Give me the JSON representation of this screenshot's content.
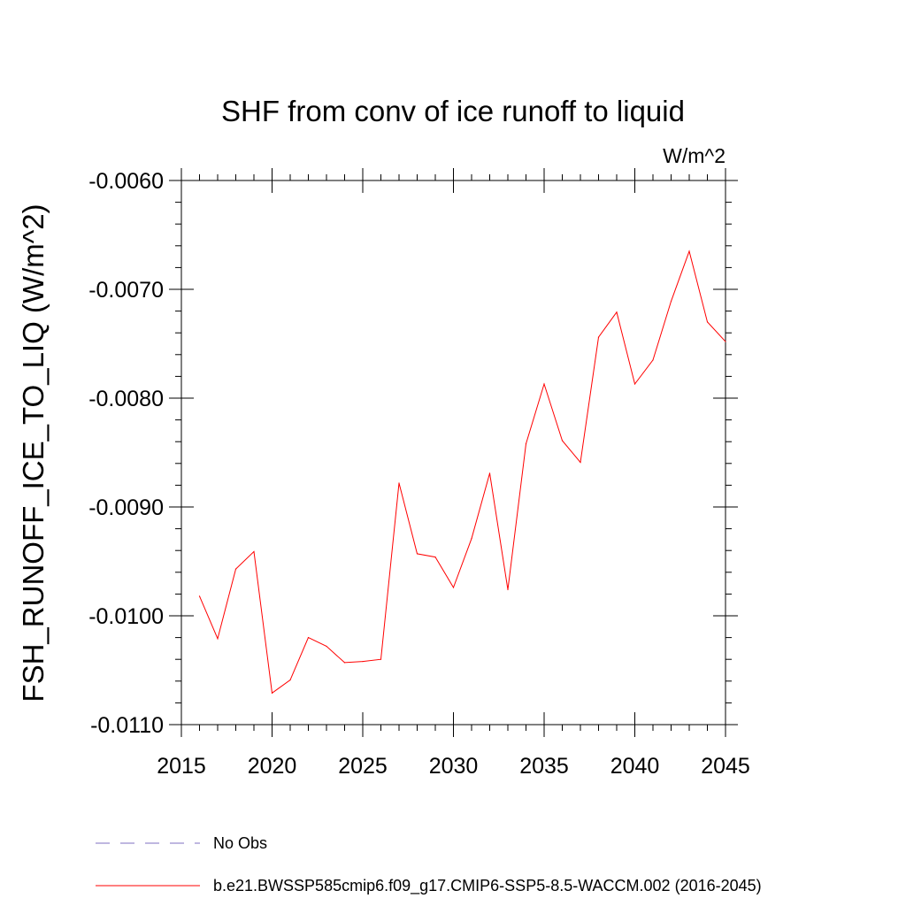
{
  "chart_data": {
    "type": "line",
    "title": "SHF from conv of ice runoff to liquid",
    "units": "W/m^2",
    "ylabel": "FSH_RUNOFF_ICE_TO_LIQ  (W/m^2)",
    "xlabel": "",
    "xlim": [
      2015,
      2045
    ],
    "ylim": [
      -0.011,
      -0.006
    ],
    "x_ticks": [
      2015,
      2020,
      2025,
      2030,
      2035,
      2040,
      2045
    ],
    "x_tick_labels": [
      "2015",
      "2020",
      "2025",
      "2030",
      "2035",
      "2040",
      "2045"
    ],
    "y_ticks": [
      -0.006,
      -0.007,
      -0.008,
      -0.009,
      -0.01,
      -0.011
    ],
    "y_tick_labels": [
      "-0.0060",
      "-0.0070",
      "-0.0080",
      "-0.0090",
      "-0.0100",
      "-0.0110"
    ],
    "grid": false,
    "legend_position": "bottom",
    "series": [
      {
        "name": "No Obs",
        "color": "#7f6fc0",
        "style": "dashed",
        "x": [],
        "values": []
      },
      {
        "name": "b.e21.BWSSP585cmip6.f09_g17.CMIP6-SSP5-8.5-WACCM.002 (2016-2045)",
        "color": "#ff0000",
        "style": "solid",
        "x": [
          2016,
          2017,
          2018,
          2019,
          2020,
          2021,
          2022,
          2023,
          2024,
          2025,
          2026,
          2027,
          2028,
          2029,
          2030,
          2031,
          2032,
          2033,
          2034,
          2035,
          2036,
          2037,
          2038,
          2039,
          2040,
          2041,
          2042,
          2043,
          2044,
          2045
        ],
        "values": [
          -0.00982,
          -0.01021,
          -0.00957,
          -0.00941,
          -0.01071,
          -0.01059,
          -0.0102,
          -0.01028,
          -0.01043,
          -0.01042,
          -0.0104,
          -0.00878,
          -0.00943,
          -0.00946,
          -0.00974,
          -0.00929,
          -0.00869,
          -0.00976,
          -0.00842,
          -0.00787,
          -0.00839,
          -0.00859,
          -0.00744,
          -0.00721,
          -0.00787,
          -0.00765,
          -0.00711,
          -0.00665,
          -0.0073,
          -0.00748
        ]
      }
    ]
  }
}
